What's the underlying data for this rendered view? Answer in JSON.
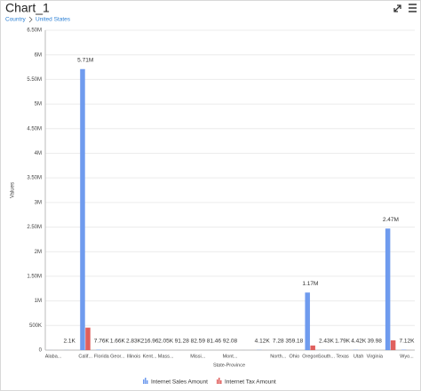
{
  "header": {
    "title": "Chart_1",
    "breadcrumb": [
      "Country",
      "United States"
    ]
  },
  "chart_data": {
    "type": "bar",
    "x_label": "State-Province",
    "y_label": "Values",
    "categories": [
      "Alaba...",
      null,
      "Calif...",
      "Florida",
      "Geor...",
      "Illinois",
      "Kent...",
      "Mass...",
      null,
      "Missi...",
      null,
      "Mont...",
      null,
      null,
      "North...",
      "Ohio",
      "Oregon",
      "South...",
      "Texas",
      "Utah",
      "Virginia",
      null,
      "Wyo..."
    ],
    "series": [
      {
        "name": "Internet Sales Amount",
        "color": "#6f9bee",
        "values": [
          1000,
          2100,
          5710000,
          7760,
          1660,
          2830,
          216.96,
          2050,
          91.28,
          82.59,
          81.46,
          92.08,
          100,
          4120,
          7.28,
          359.18,
          1170000,
          2430,
          1790,
          4420,
          39.98,
          2470000,
          7120
        ],
        "value_labels": [
          null,
          "2.1K",
          "5.71M",
          "7.76K",
          "1.66K",
          "2.83K",
          "216.96",
          "2.05K",
          "91.28",
          "82.59",
          "81.46",
          "92.08",
          null,
          "4.12K",
          "7.28",
          "359.18",
          "1.17M",
          "2.43K",
          "1.79K",
          "4.42K",
          "39.98",
          "2.47M",
          "7.12K"
        ]
      },
      {
        "name": "Internet Tax Amount",
        "color": "#e0605e",
        "values": [
          80,
          168,
          457000,
          621,
          133,
          226,
          17,
          164,
          7,
          7,
          7,
          7,
          8,
          330,
          1,
          29,
          94000,
          194,
          143,
          354,
          3,
          198000,
          570
        ]
      }
    ],
    "ylim": [
      0,
      6500000
    ],
    "yticks": [
      0,
      {
        "value": 500000,
        "label": "500K"
      },
      {
        "value": 1000000,
        "label": "1M"
      },
      {
        "value": 1500000,
        "label": "1.50M"
      },
      {
        "value": 2000000,
        "label": "2M"
      },
      {
        "value": 2500000,
        "label": "2.50M"
      },
      {
        "value": 3000000,
        "label": "3M"
      },
      {
        "value": 3500000,
        "label": "3.50M"
      },
      {
        "value": 4000000,
        "label": "4M"
      },
      {
        "value": 4500000,
        "label": "4.50M"
      },
      {
        "value": 5000000,
        "label": "5M"
      },
      {
        "value": 5500000,
        "label": "5.50M"
      },
      {
        "value": 6000000,
        "label": "6M"
      },
      {
        "value": 6500000,
        "label": "6.50M"
      }
    ],
    "grid": true,
    "legend": "bottom"
  }
}
